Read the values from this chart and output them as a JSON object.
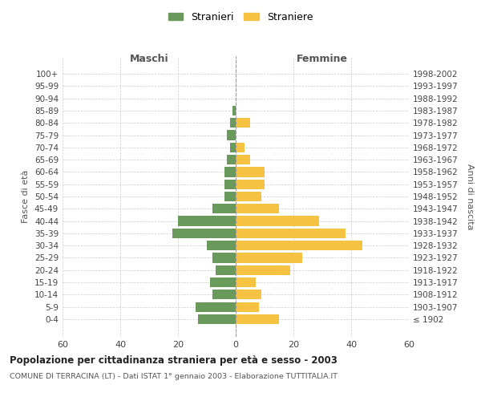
{
  "age_groups": [
    "100+",
    "95-99",
    "90-94",
    "85-89",
    "80-84",
    "75-79",
    "70-74",
    "65-69",
    "60-64",
    "55-59",
    "50-54",
    "45-49",
    "40-44",
    "35-39",
    "30-34",
    "25-29",
    "20-24",
    "15-19",
    "10-14",
    "5-9",
    "0-4"
  ],
  "birth_years": [
    "≤ 1902",
    "1903-1907",
    "1908-1912",
    "1913-1917",
    "1918-1922",
    "1923-1927",
    "1928-1932",
    "1933-1937",
    "1938-1942",
    "1943-1947",
    "1948-1952",
    "1953-1957",
    "1958-1962",
    "1963-1967",
    "1968-1972",
    "1973-1977",
    "1978-1982",
    "1983-1987",
    "1988-1992",
    "1993-1997",
    "1998-2002"
  ],
  "maschi": [
    0,
    0,
    0,
    1,
    2,
    3,
    2,
    3,
    4,
    4,
    4,
    8,
    20,
    22,
    10,
    8,
    7,
    9,
    8,
    14,
    13
  ],
  "femmine": [
    0,
    0,
    0,
    0,
    5,
    0,
    3,
    5,
    10,
    10,
    9,
    15,
    29,
    38,
    44,
    23,
    19,
    7,
    9,
    8,
    15
  ],
  "maschi_color": "#6a9a5b",
  "femmine_color": "#f5c242",
  "background_color": "#ffffff",
  "grid_color": "#cccccc",
  "title": "Popolazione per cittadinanza straniera per età e sesso - 2003",
  "subtitle": "COMUNE DI TERRACINA (LT) - Dati ISTAT 1° gennaio 2003 - Elaborazione TUTTITALIA.IT",
  "xlabel_left": "Maschi",
  "xlabel_right": "Femmine",
  "ylabel_left": "Fasce di età",
  "ylabel_right": "Anni di nascita",
  "legend_maschi": "Stranieri",
  "legend_femmine": "Straniere",
  "xlim": 60,
  "bar_height": 0.8
}
